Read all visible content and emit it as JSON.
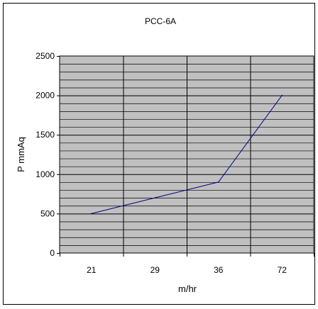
{
  "chart_data": {
    "type": "line",
    "title": "PCC-6A",
    "xlabel": "m/hr",
    "ylabel": "P mmAq",
    "categories": [
      "21",
      "29",
      "36",
      "72"
    ],
    "series": [
      {
        "values": [
          500,
          700,
          900,
          2000
        ]
      }
    ],
    "ylim": [
      0,
      2500
    ],
    "yticks": [
      0,
      500,
      1000,
      1500,
      2000,
      2500
    ],
    "grid": true,
    "legend": "none",
    "colors": {
      "plot_background": "#c0c0c0",
      "grid": "#000000",
      "line": "#000080"
    }
  }
}
